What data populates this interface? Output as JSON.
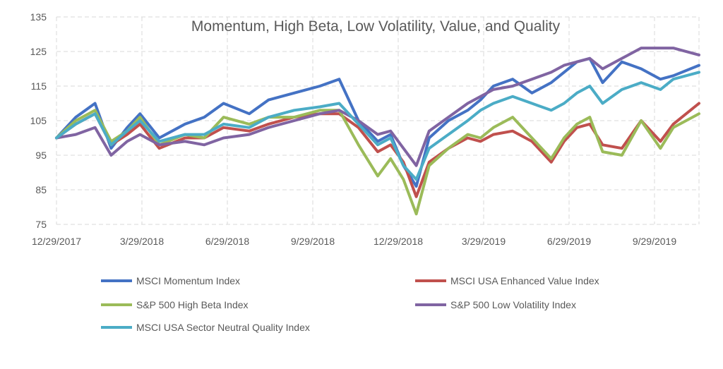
{
  "chart_data": {
    "type": "line",
    "title": "Momentum, High Beta, Low Volatility, Value, and Quality",
    "xlabel": "",
    "ylabel": "",
    "ylim": [
      75,
      135
    ],
    "y_ticks": [
      "75",
      "85",
      "95",
      "105",
      "115",
      "125",
      "135"
    ],
    "x_ticks": [
      "12/29/2017",
      "3/29/2018",
      "6/29/2018",
      "9/29/2018",
      "12/29/2018",
      "3/29/2019",
      "6/29/2019",
      "9/29/2019"
    ],
    "grid": "dashed",
    "legend_position": "bottom",
    "series": [
      {
        "name": "MSCI Momentum Index",
        "color": "#4472c4",
        "x": [
          0,
          0.03,
          0.06,
          0.085,
          0.11,
          0.13,
          0.16,
          0.2,
          0.23,
          0.26,
          0.3,
          0.33,
          0.37,
          0.41,
          0.44,
          0.47,
          0.5,
          0.52,
          0.54,
          0.56,
          0.58,
          0.61,
          0.64,
          0.66,
          0.68,
          0.71,
          0.74,
          0.77,
          0.79,
          0.81,
          0.83,
          0.85,
          0.88,
          0.91,
          0.94,
          0.96,
          1.0
        ],
        "values": [
          100,
          106,
          110,
          97,
          103,
          107,
          100,
          104,
          106,
          110,
          107,
          111,
          113,
          115,
          117,
          105,
          99,
          101,
          92,
          86,
          100,
          105,
          108,
          111,
          115,
          117,
          113,
          116,
          119,
          122,
          123,
          116,
          122,
          120,
          117,
          118,
          121
        ]
      },
      {
        "name": "MSCI USA Enhanced Value Index",
        "color": "#c0504d",
        "x": [
          0,
          0.03,
          0.06,
          0.085,
          0.11,
          0.13,
          0.16,
          0.2,
          0.23,
          0.26,
          0.3,
          0.33,
          0.37,
          0.41,
          0.44,
          0.47,
          0.5,
          0.52,
          0.54,
          0.56,
          0.58,
          0.61,
          0.64,
          0.66,
          0.68,
          0.71,
          0.74,
          0.77,
          0.79,
          0.81,
          0.83,
          0.85,
          0.88,
          0.91,
          0.94,
          0.96,
          1.0
        ],
        "values": [
          100,
          104,
          107,
          98,
          101,
          104,
          97,
          100,
          100,
          103,
          102,
          104,
          106,
          107,
          107,
          103,
          96,
          98,
          93,
          83,
          93,
          97,
          100,
          99,
          101,
          102,
          99,
          93,
          99,
          103,
          104,
          98,
          97,
          105,
          99,
          104,
          110
        ]
      },
      {
        "name": "S&P 500 High Beta Index",
        "color": "#9bbb59",
        "x": [
          0,
          0.03,
          0.06,
          0.085,
          0.11,
          0.13,
          0.16,
          0.2,
          0.23,
          0.26,
          0.3,
          0.33,
          0.37,
          0.41,
          0.44,
          0.47,
          0.5,
          0.52,
          0.54,
          0.56,
          0.58,
          0.61,
          0.64,
          0.66,
          0.68,
          0.71,
          0.74,
          0.77,
          0.79,
          0.81,
          0.83,
          0.85,
          0.88,
          0.91,
          0.94,
          0.96,
          1.0
        ],
        "values": [
          100,
          105,
          108,
          99,
          102,
          106,
          98,
          101,
          100,
          106,
          104,
          106,
          106,
          108,
          108,
          98,
          89,
          94,
          88,
          78,
          92,
          97,
          101,
          100,
          103,
          106,
          100,
          94,
          100,
          104,
          106,
          96,
          95,
          105,
          97,
          103,
          107
        ]
      },
      {
        "name": "S&P 500 Low Volatility Index",
        "color": "#8064a2",
        "x": [
          0,
          0.03,
          0.06,
          0.085,
          0.11,
          0.13,
          0.16,
          0.2,
          0.23,
          0.26,
          0.3,
          0.33,
          0.37,
          0.41,
          0.44,
          0.47,
          0.5,
          0.52,
          0.54,
          0.56,
          0.58,
          0.61,
          0.64,
          0.66,
          0.68,
          0.71,
          0.74,
          0.77,
          0.79,
          0.81,
          0.83,
          0.85,
          0.88,
          0.91,
          0.94,
          0.96,
          1.0
        ],
        "values": [
          100,
          101,
          103,
          95,
          99,
          101,
          98,
          99,
          98,
          100,
          101,
          103,
          105,
          107,
          108,
          105,
          101,
          102,
          97,
          92,
          102,
          106,
          110,
          112,
          114,
          115,
          117,
          119,
          121,
          122,
          123,
          120,
          123,
          126,
          126,
          126,
          124
        ]
      },
      {
        "name": "MSCI USA Sector Neutral Quality Index",
        "color": "#4bacc6",
        "x": [
          0,
          0.03,
          0.06,
          0.085,
          0.11,
          0.13,
          0.16,
          0.2,
          0.23,
          0.26,
          0.3,
          0.33,
          0.37,
          0.41,
          0.44,
          0.47,
          0.5,
          0.52,
          0.54,
          0.56,
          0.58,
          0.61,
          0.64,
          0.66,
          0.68,
          0.71,
          0.74,
          0.77,
          0.79,
          0.81,
          0.83,
          0.85,
          0.88,
          0.91,
          0.94,
          0.96,
          1.0
        ],
        "values": [
          100,
          104,
          107,
          98,
          102,
          105,
          99,
          101,
          101,
          104,
          103,
          106,
          108,
          109,
          110,
          104,
          98,
          100,
          92,
          88,
          97,
          101,
          105,
          108,
          110,
          112,
          110,
          108,
          110,
          113,
          115,
          110,
          114,
          116,
          114,
          117,
          119
        ]
      }
    ]
  }
}
